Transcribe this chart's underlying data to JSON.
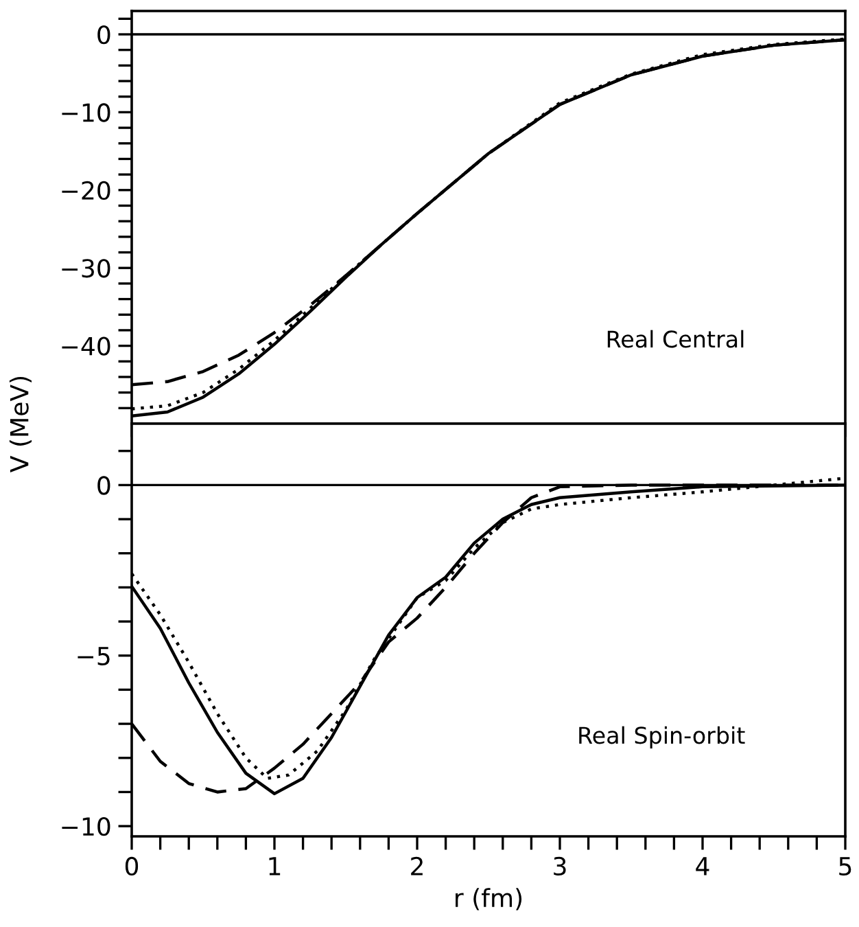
{
  "chart_data": [
    {
      "type": "line",
      "ylabel": "V (MeV)",
      "annotations": [
        "Real Central"
      ],
      "xlim": [
        0,
        5
      ],
      "ylim": [
        -50,
        3
      ],
      "tick_labels": "y",
      "xticks": [
        {
          "value": 0,
          "label": null
        },
        {
          "value": 1,
          "label": null
        },
        {
          "value": 2,
          "label": null
        },
        {
          "value": 3,
          "label": null
        },
        {
          "value": 4,
          "label": null
        },
        {
          "value": 5,
          "label": null
        }
      ],
      "yticks": [
        {
          "value": -40,
          "label": "−40"
        },
        {
          "value": -30,
          "label": "−30"
        },
        {
          "value": -20,
          "label": "−20"
        },
        {
          "value": -10,
          "label": "−10"
        },
        0,
        {
          "value": -48,
          "label": null
        },
        {
          "value": -46,
          "label": null
        },
        {
          "value": -44,
          "label": null
        },
        {
          "value": -42,
          "label": null
        },
        {
          "value": -38,
          "label": null
        },
        {
          "value": -36,
          "label": null
        },
        {
          "value": -34,
          "label": null
        },
        {
          "value": -32,
          "label": null
        },
        {
          "value": -28,
          "label": null
        },
        {
          "value": -26,
          "label": null
        },
        {
          "value": -24,
          "label": null
        },
        {
          "value": -22,
          "label": null
        },
        {
          "value": -18,
          "label": null
        },
        {
          "value": -16,
          "label": null
        },
        {
          "value": -14,
          "label": null
        },
        {
          "value": -12,
          "label": null
        },
        {
          "value": -8,
          "label": null
        },
        {
          "value": -6,
          "label": null
        },
        {
          "value": -4,
          "label": null
        },
        {
          "value": -2,
          "label": null
        },
        {
          "value": 2,
          "label": null
        }
      ],
      "ref_lines": [
        {
          "axis": "y",
          "value": 0,
          "color": "#000000"
        }
      ],
      "grid": false,
      "legend": false,
      "x": [
        0,
        0.25,
        0.5,
        0.75,
        1.0,
        1.25,
        1.5,
        1.75,
        2.0,
        2.5,
        3.0,
        3.5,
        4.0,
        4.5,
        5.0
      ],
      "series": [
        {
          "color": "#000000",
          "line_style": "solid",
          "values": [
            -49,
            -48.5,
            -46.6,
            -43.6,
            -39.8,
            -35.6,
            -31.2,
            -27,
            -23,
            -15.3,
            -9.0,
            -5.2,
            -2.8,
            -1.4,
            -0.7
          ]
        },
        {
          "color": "#000000",
          "line_style": "dotted",
          "values": [
            -48.1,
            -47.7,
            -46,
            -43,
            -39.3,
            -35.2,
            -31,
            -27,
            -23,
            -15.3,
            -8.8,
            -5.1,
            -2.6,
            -1.3,
            -0.6
          ]
        },
        {
          "color": "#000000",
          "line_style": "dashed",
          "values": [
            -45,
            -44.6,
            -43.3,
            -41.2,
            -38.3,
            -34.8,
            -31,
            -27,
            -23,
            -15.3,
            -9.0,
            -5.2,
            -2.8,
            -1.4,
            -0.7
          ]
        }
      ]
    },
    {
      "type": "line",
      "xlabel": "r (fm)",
      "annotations": [
        "Real Spin-orbit"
      ],
      "xlim": [
        0,
        5
      ],
      "ylim": [
        -10.3,
        1.8
      ],
      "xticks": [
        0,
        1,
        2,
        3,
        4,
        5,
        {
          "value": 0.2,
          "label": null
        },
        {
          "value": 0.4,
          "label": null
        },
        {
          "value": 0.6,
          "label": null
        },
        {
          "value": 0.8,
          "label": null
        },
        {
          "value": 1.2,
          "label": null
        },
        {
          "value": 1.4,
          "label": null
        },
        {
          "value": 1.6,
          "label": null
        },
        {
          "value": 1.8,
          "label": null
        },
        {
          "value": 2.2,
          "label": null
        },
        {
          "value": 2.4,
          "label": null
        },
        {
          "value": 2.6,
          "label": null
        },
        {
          "value": 2.8,
          "label": null
        },
        {
          "value": 3.2,
          "label": null
        },
        {
          "value": 3.4,
          "label": null
        },
        {
          "value": 3.6,
          "label": null
        },
        {
          "value": 3.8,
          "label": null
        },
        {
          "value": 4.2,
          "label": null
        },
        {
          "value": 4.4,
          "label": null
        },
        {
          "value": 4.6,
          "label": null
        },
        {
          "value": 4.8,
          "label": null
        }
      ],
      "yticks": [
        {
          "value": -10,
          "label": "−10"
        },
        {
          "value": -5,
          "label": "−5"
        },
        0,
        {
          "value": -9,
          "label": null
        },
        {
          "value": -8,
          "label": null
        },
        {
          "value": -7,
          "label": null
        },
        {
          "value": -6,
          "label": null
        },
        {
          "value": -4,
          "label": null
        },
        {
          "value": -3,
          "label": null
        },
        {
          "value": -2,
          "label": null
        },
        {
          "value": -1,
          "label": null
        },
        {
          "value": 1,
          "label": null
        }
      ],
      "ref_lines": [
        {
          "axis": "y",
          "value": 0,
          "color": "#000000"
        }
      ],
      "grid": false,
      "legend": false,
      "series": [
        {
          "color": "#000000",
          "line_style": "solid",
          "x": [
            0,
            0.2,
            0.4,
            0.6,
            0.8,
            1.0,
            1.2,
            1.4,
            1.6,
            1.8,
            2.0,
            2.2,
            2.4,
            2.6,
            2.8,
            3.0,
            3.5,
            4.0,
            5.0
          ],
          "values": [
            -2.97,
            -4.2,
            -5.8,
            -7.25,
            -8.45,
            -9.05,
            -8.6,
            -7.4,
            -5.9,
            -4.4,
            -3.3,
            -2.7,
            -1.7,
            -1.0,
            -0.57,
            -0.37,
            -0.2,
            -0.05,
            0
          ]
        },
        {
          "color": "#000000",
          "line_style": "dotted",
          "x": [
            0,
            0.2,
            0.4,
            0.6,
            0.8,
            0.95,
            1.1,
            1.3,
            1.5,
            1.7,
            2.0,
            2.2,
            2.4,
            2.6,
            2.8,
            3.0,
            3.5,
            4.0,
            4.5,
            5.0
          ],
          "values": [
            -2.6,
            -3.8,
            -5.2,
            -6.7,
            -8.0,
            -8.6,
            -8.5,
            -7.8,
            -6.6,
            -5.1,
            -3.3,
            -2.8,
            -1.85,
            -1.1,
            -0.7,
            -0.57,
            -0.37,
            -0.2,
            0,
            0.2
          ]
        },
        {
          "color": "#000000",
          "line_style": "dashed",
          "x": [
            0,
            0.2,
            0.4,
            0.6,
            0.8,
            1.0,
            1.2,
            1.4,
            1.6,
            1.8,
            2.0,
            2.2,
            2.4,
            2.6,
            2.8,
            3.0,
            3.5,
            5.0
          ],
          "values": [
            -7.0,
            -8.1,
            -8.75,
            -9.0,
            -8.9,
            -8.3,
            -7.6,
            -6.7,
            -5.8,
            -4.6,
            -3.9,
            -3.0,
            -2.0,
            -1.1,
            -0.37,
            -0.05,
            0,
            0
          ]
        }
      ]
    }
  ]
}
